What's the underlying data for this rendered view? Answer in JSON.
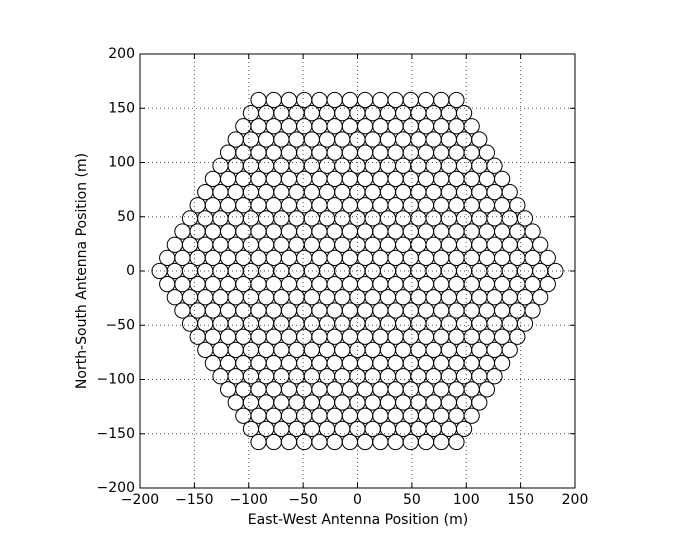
{
  "chart_data": {
    "type": "scatter",
    "xlabel": "East-West Antenna Position (m)",
    "ylabel": "North-South Antenna Position (m)",
    "xlim": [
      -200,
      200
    ],
    "ylim": [
      -200,
      200
    ],
    "xticks": [
      {
        "value": -200,
        "label": "−200"
      },
      {
        "value": -150,
        "label": "−150"
      },
      {
        "value": -100,
        "label": "−100"
      },
      {
        "value": -50,
        "label": "−50"
      },
      0,
      50,
      100,
      150,
      200
    ],
    "yticks": [
      {
        "value": -200,
        "label": "−200"
      },
      {
        "value": -150,
        "label": "−150"
      },
      {
        "value": -100,
        "label": "−100"
      },
      {
        "value": -50,
        "label": "−50"
      },
      0,
      50,
      100,
      150,
      200
    ],
    "grid": true,
    "marker_color": "#000000",
    "marker_diameter": 14,
    "series": [
      {
        "x": [
          -91,
          -77,
          -63,
          -49,
          -35,
          -21,
          -7,
          7,
          21,
          35,
          49,
          63,
          77,
          91
        ],
        "values": [
          157.6,
          157.6,
          157.6,
          157.6,
          157.6,
          157.6,
          157.6,
          157.6,
          157.6,
          157.6,
          157.6,
          157.6,
          157.6,
          157.6
        ]
      },
      {
        "x": [
          -98,
          -84,
          -70,
          -56,
          -42,
          -28,
          -14,
          0,
          14,
          28,
          42,
          56,
          70,
          84,
          98
        ],
        "values": [
          145.5,
          145.5,
          145.5,
          145.5,
          145.5,
          145.5,
          145.5,
          145.5,
          145.5,
          145.5,
          145.5,
          145.5,
          145.5,
          145.5,
          145.5
        ]
      },
      {
        "x": [
          -105,
          -91,
          -77,
          -63,
          -49,
          -35,
          -21,
          -7,
          7,
          21,
          35,
          49,
          63,
          77,
          91,
          105
        ],
        "values": [
          133.4,
          133.4,
          133.4,
          133.4,
          133.4,
          133.4,
          133.4,
          133.4,
          133.4,
          133.4,
          133.4,
          133.4,
          133.4,
          133.4,
          133.4,
          133.4
        ]
      },
      {
        "x": [
          -112,
          -98,
          -84,
          -70,
          -56,
          -42,
          -28,
          -14,
          0,
          14,
          28,
          42,
          56,
          70,
          84,
          98,
          112
        ],
        "values": [
          121.2,
          121.2,
          121.2,
          121.2,
          121.2,
          121.2,
          121.2,
          121.2,
          121.2,
          121.2,
          121.2,
          121.2,
          121.2,
          121.2,
          121.2,
          121.2,
          121.2
        ]
      },
      {
        "x": [
          -119,
          -105,
          -91,
          -77,
          -63,
          -49,
          -35,
          -21,
          -7,
          7,
          21,
          35,
          49,
          63,
          77,
          91,
          105,
          119
        ],
        "values": [
          109.1,
          109.1,
          109.1,
          109.1,
          109.1,
          109.1,
          109.1,
          109.1,
          109.1,
          109.1,
          109.1,
          109.1,
          109.1,
          109.1,
          109.1,
          109.1,
          109.1,
          109.1
        ]
      },
      {
        "x": [
          -126,
          -112,
          -98,
          -84,
          -70,
          -56,
          -42,
          -28,
          -14,
          0,
          14,
          28,
          42,
          56,
          70,
          84,
          98,
          112,
          126
        ],
        "values": [
          97,
          97,
          97,
          97,
          97,
          97,
          97,
          97,
          97,
          97,
          97,
          97,
          97,
          97,
          97,
          97,
          97,
          97,
          97
        ]
      },
      {
        "x": [
          -133,
          -119,
          -105,
          -91,
          -77,
          -63,
          -49,
          -35,
          -21,
          -7,
          7,
          21,
          35,
          49,
          63,
          77,
          91,
          105,
          119,
          133
        ],
        "values": [
          84.9,
          84.9,
          84.9,
          84.9,
          84.9,
          84.9,
          84.9,
          84.9,
          84.9,
          84.9,
          84.9,
          84.9,
          84.9,
          84.9,
          84.9,
          84.9,
          84.9,
          84.9,
          84.9,
          84.9
        ]
      },
      {
        "x": [
          -140,
          -126,
          -112,
          -98,
          -84,
          -70,
          -56,
          -42,
          -28,
          -14,
          0,
          14,
          28,
          42,
          56,
          70,
          84,
          98,
          112,
          126,
          140
        ],
        "values": [
          72.7,
          72.7,
          72.7,
          72.7,
          72.7,
          72.7,
          72.7,
          72.7,
          72.7,
          72.7,
          72.7,
          72.7,
          72.7,
          72.7,
          72.7,
          72.7,
          72.7,
          72.7,
          72.7,
          72.7,
          72.7
        ]
      },
      {
        "x": [
          -147,
          -133,
          -119,
          -105,
          -91,
          -77,
          -63,
          -49,
          -35,
          -21,
          -7,
          7,
          21,
          35,
          49,
          63,
          77,
          91,
          105,
          119,
          133,
          147
        ],
        "values": [
          60.6,
          60.6,
          60.6,
          60.6,
          60.6,
          60.6,
          60.6,
          60.6,
          60.6,
          60.6,
          60.6,
          60.6,
          60.6,
          60.6,
          60.6,
          60.6,
          60.6,
          60.6,
          60.6,
          60.6,
          60.6,
          60.6
        ]
      },
      {
        "x": [
          -154,
          -140,
          -126,
          -112,
          -98,
          -84,
          -70,
          -56,
          -42,
          -28,
          -14,
          0,
          14,
          28,
          42,
          56,
          70,
          84,
          98,
          112,
          126,
          140,
          154
        ],
        "values": [
          48.5,
          48.5,
          48.5,
          48.5,
          48.5,
          48.5,
          48.5,
          48.5,
          48.5,
          48.5,
          48.5,
          48.5,
          48.5,
          48.5,
          48.5,
          48.5,
          48.5,
          48.5,
          48.5,
          48.5,
          48.5,
          48.5,
          48.5
        ]
      },
      {
        "x": [
          -161,
          -147,
          -133,
          -119,
          -105,
          -91,
          -77,
          -63,
          -49,
          -35,
          -21,
          -7,
          7,
          21,
          35,
          49,
          63,
          77,
          91,
          105,
          119,
          133,
          147,
          161
        ],
        "values": [
          36.4,
          36.4,
          36.4,
          36.4,
          36.4,
          36.4,
          36.4,
          36.4,
          36.4,
          36.4,
          36.4,
          36.4,
          36.4,
          36.4,
          36.4,
          36.4,
          36.4,
          36.4,
          36.4,
          36.4,
          36.4,
          36.4,
          36.4,
          36.4
        ]
      },
      {
        "x": [
          -168,
          -154,
          -140,
          -126,
          -112,
          -98,
          -84,
          -70,
          -56,
          -42,
          -28,
          -14,
          0,
          14,
          28,
          42,
          56,
          70,
          84,
          98,
          112,
          126,
          140,
          154,
          168
        ],
        "values": [
          24.2,
          24.2,
          24.2,
          24.2,
          24.2,
          24.2,
          24.2,
          24.2,
          24.2,
          24.2,
          24.2,
          24.2,
          24.2,
          24.2,
          24.2,
          24.2,
          24.2,
          24.2,
          24.2,
          24.2,
          24.2,
          24.2,
          24.2,
          24.2,
          24.2
        ]
      },
      {
        "x": [
          -175,
          -161,
          -147,
          -133,
          -119,
          -105,
          -91,
          -77,
          -63,
          -49,
          -35,
          -21,
          -7,
          7,
          21,
          35,
          49,
          63,
          77,
          91,
          105,
          119,
          133,
          147,
          161,
          175
        ],
        "values": [
          12.1,
          12.1,
          12.1,
          12.1,
          12.1,
          12.1,
          12.1,
          12.1,
          12.1,
          12.1,
          12.1,
          12.1,
          12.1,
          12.1,
          12.1,
          12.1,
          12.1,
          12.1,
          12.1,
          12.1,
          12.1,
          12.1,
          12.1,
          12.1,
          12.1,
          12.1
        ]
      },
      {
        "x": [
          -182,
          -168,
          -154,
          -140,
          -126,
          -112,
          -98,
          -84,
          -70,
          -56,
          -42,
          -28,
          -14,
          0,
          14,
          28,
          42,
          56,
          70,
          84,
          98,
          112,
          126,
          140,
          154,
          168,
          182
        ],
        "values": [
          0,
          0,
          0,
          0,
          0,
          0,
          0,
          0,
          0,
          0,
          0,
          0,
          0,
          0,
          0,
          0,
          0,
          0,
          0,
          0,
          0,
          0,
          0,
          0,
          0,
          0,
          0
        ]
      },
      {
        "x": [
          -175,
          -161,
          -147,
          -133,
          -119,
          -105,
          -91,
          -77,
          -63,
          -49,
          -35,
          -21,
          -7,
          7,
          21,
          35,
          49,
          63,
          77,
          91,
          105,
          119,
          133,
          147,
          161,
          175
        ],
        "values": [
          -12.1,
          -12.1,
          -12.1,
          -12.1,
          -12.1,
          -12.1,
          -12.1,
          -12.1,
          -12.1,
          -12.1,
          -12.1,
          -12.1,
          -12.1,
          -12.1,
          -12.1,
          -12.1,
          -12.1,
          -12.1,
          -12.1,
          -12.1,
          -12.1,
          -12.1,
          -12.1,
          -12.1,
          -12.1,
          -12.1
        ]
      },
      {
        "x": [
          -168,
          -154,
          -140,
          -126,
          -112,
          -98,
          -84,
          -70,
          -56,
          -42,
          -28,
          -14,
          0,
          14,
          28,
          42,
          56,
          70,
          84,
          98,
          112,
          126,
          140,
          154,
          168
        ],
        "values": [
          -24.2,
          -24.2,
          -24.2,
          -24.2,
          -24.2,
          -24.2,
          -24.2,
          -24.2,
          -24.2,
          -24.2,
          -24.2,
          -24.2,
          -24.2,
          -24.2,
          -24.2,
          -24.2,
          -24.2,
          -24.2,
          -24.2,
          -24.2,
          -24.2,
          -24.2,
          -24.2,
          -24.2,
          -24.2
        ]
      },
      {
        "x": [
          -161,
          -147,
          -133,
          -119,
          -105,
          -91,
          -77,
          -63,
          -49,
          -35,
          -21,
          -7,
          7,
          21,
          35,
          49,
          63,
          77,
          91,
          105,
          119,
          133,
          147,
          161
        ],
        "values": [
          -36.4,
          -36.4,
          -36.4,
          -36.4,
          -36.4,
          -36.4,
          -36.4,
          -36.4,
          -36.4,
          -36.4,
          -36.4,
          -36.4,
          -36.4,
          -36.4,
          -36.4,
          -36.4,
          -36.4,
          -36.4,
          -36.4,
          -36.4,
          -36.4,
          -36.4,
          -36.4,
          -36.4
        ]
      },
      {
        "x": [
          -154,
          -140,
          -126,
          -112,
          -98,
          -84,
          -70,
          -56,
          -42,
          -28,
          -14,
          0,
          14,
          28,
          42,
          56,
          70,
          84,
          98,
          112,
          126,
          140,
          154
        ],
        "values": [
          -48.5,
          -48.5,
          -48.5,
          -48.5,
          -48.5,
          -48.5,
          -48.5,
          -48.5,
          -48.5,
          -48.5,
          -48.5,
          -48.5,
          -48.5,
          -48.5,
          -48.5,
          -48.5,
          -48.5,
          -48.5,
          -48.5,
          -48.5,
          -48.5,
          -48.5,
          -48.5
        ]
      },
      {
        "x": [
          -147,
          -133,
          -119,
          -105,
          -91,
          -77,
          -63,
          -49,
          -35,
          -21,
          -7,
          7,
          21,
          35,
          49,
          63,
          77,
          91,
          105,
          119,
          133,
          147
        ],
        "values": [
          -60.6,
          -60.6,
          -60.6,
          -60.6,
          -60.6,
          -60.6,
          -60.6,
          -60.6,
          -60.6,
          -60.6,
          -60.6,
          -60.6,
          -60.6,
          -60.6,
          -60.6,
          -60.6,
          -60.6,
          -60.6,
          -60.6,
          -60.6,
          -60.6,
          -60.6
        ]
      },
      {
        "x": [
          -140,
          -126,
          -112,
          -98,
          -84,
          -70,
          -56,
          -42,
          -28,
          -14,
          0,
          14,
          28,
          42,
          56,
          70,
          84,
          98,
          112,
          126,
          140
        ],
        "values": [
          -72.7,
          -72.7,
          -72.7,
          -72.7,
          -72.7,
          -72.7,
          -72.7,
          -72.7,
          -72.7,
          -72.7,
          -72.7,
          -72.7,
          -72.7,
          -72.7,
          -72.7,
          -72.7,
          -72.7,
          -72.7,
          -72.7,
          -72.7,
          -72.7
        ]
      },
      {
        "x": [
          -133,
          -119,
          -105,
          -91,
          -77,
          -63,
          -49,
          -35,
          -21,
          -7,
          7,
          21,
          35,
          49,
          63,
          77,
          91,
          105,
          119,
          133
        ],
        "values": [
          -84.9,
          -84.9,
          -84.9,
          -84.9,
          -84.9,
          -84.9,
          -84.9,
          -84.9,
          -84.9,
          -84.9,
          -84.9,
          -84.9,
          -84.9,
          -84.9,
          -84.9,
          -84.9,
          -84.9,
          -84.9,
          -84.9,
          -84.9
        ]
      },
      {
        "x": [
          -126,
          -112,
          -98,
          -84,
          -70,
          -56,
          -42,
          -28,
          -14,
          0,
          14,
          28,
          42,
          56,
          70,
          84,
          98,
          112,
          126
        ],
        "values": [
          -97,
          -97,
          -97,
          -97,
          -97,
          -97,
          -97,
          -97,
          -97,
          -97,
          -97,
          -97,
          -97,
          -97,
          -97,
          -97,
          -97,
          -97,
          -97
        ]
      },
      {
        "x": [
          -119,
          -105,
          -91,
          -77,
          -63,
          -49,
          -35,
          -21,
          -7,
          7,
          21,
          35,
          49,
          63,
          77,
          91,
          105,
          119
        ],
        "values": [
          -109.1,
          -109.1,
          -109.1,
          -109.1,
          -109.1,
          -109.1,
          -109.1,
          -109.1,
          -109.1,
          -109.1,
          -109.1,
          -109.1,
          -109.1,
          -109.1,
          -109.1,
          -109.1,
          -109.1,
          -109.1
        ]
      },
      {
        "x": [
          -112,
          -98,
          -84,
          -70,
          -56,
          -42,
          -28,
          -14,
          0,
          14,
          28,
          42,
          56,
          70,
          84,
          98,
          112
        ],
        "values": [
          -121.2,
          -121.2,
          -121.2,
          -121.2,
          -121.2,
          -121.2,
          -121.2,
          -121.2,
          -121.2,
          -121.2,
          -121.2,
          -121.2,
          -121.2,
          -121.2,
          -121.2,
          -121.2,
          -121.2
        ]
      },
      {
        "x": [
          -105,
          -91,
          -77,
          -63,
          -49,
          -35,
          -21,
          -7,
          7,
          21,
          35,
          49,
          63,
          77,
          91,
          105
        ],
        "values": [
          -133.4,
          -133.4,
          -133.4,
          -133.4,
          -133.4,
          -133.4,
          -133.4,
          -133.4,
          -133.4,
          -133.4,
          -133.4,
          -133.4,
          -133.4,
          -133.4,
          -133.4,
          -133.4
        ]
      },
      {
        "x": [
          -98,
          -84,
          -70,
          -56,
          -42,
          -28,
          -14,
          0,
          14,
          28,
          42,
          56,
          70,
          84,
          98
        ],
        "values": [
          -145.5,
          -145.5,
          -145.5,
          -145.5,
          -145.5,
          -145.5,
          -145.5,
          -145.5,
          -145.5,
          -145.5,
          -145.5,
          -145.5,
          -145.5,
          -145.5,
          -145.5
        ]
      },
      {
        "x": [
          -91,
          -77,
          -63,
          -49,
          -35,
          -21,
          -7,
          7,
          21,
          35,
          49,
          63,
          77,
          91
        ],
        "values": [
          -157.6,
          -157.6,
          -157.6,
          -157.6,
          -157.6,
          -157.6,
          -157.6,
          -157.6,
          -157.6,
          -157.6,
          -157.6,
          -157.6,
          -157.6,
          -157.6
        ]
      }
    ]
  }
}
